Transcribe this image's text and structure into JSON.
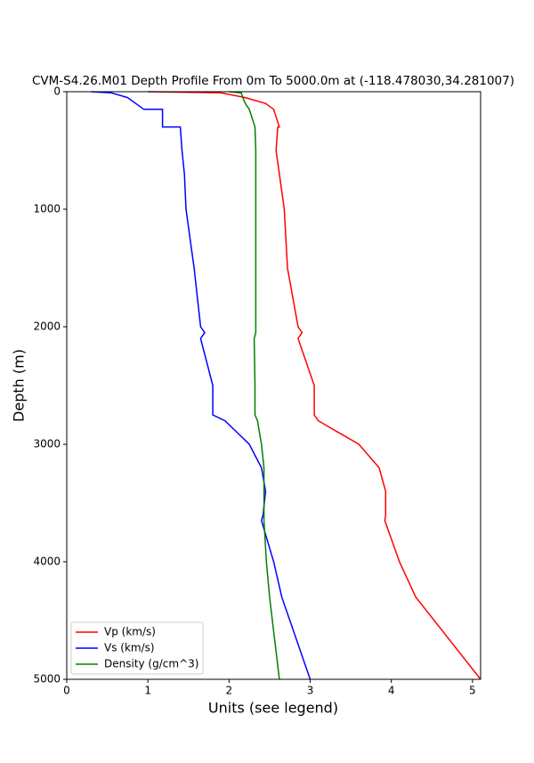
{
  "chart_data": {
    "type": "line",
    "title": "CVM-S4.26.M01 Depth Profile From 0m To 5000.0m at (-118.478030,34.281007)",
    "x_label": "Units (see legend)",
    "y_label": "Depth (m)",
    "y": [
      0,
      10,
      50,
      100,
      150,
      150,
      300,
      300,
      500,
      700,
      1000,
      1500,
      2000,
      2050,
      2100,
      2500,
      2750,
      2800,
      3000,
      3200,
      3400,
      3600,
      3650,
      4000,
      4300,
      5000
    ],
    "series": [
      {
        "name": "Vp (km/s)",
        "color": "#ff0000",
        "values": [
          1.0,
          1.9,
          2.2,
          2.45,
          2.55,
          2.55,
          2.62,
          2.6,
          2.58,
          2.62,
          2.68,
          2.72,
          2.85,
          2.9,
          2.85,
          3.05,
          3.05,
          3.1,
          3.6,
          3.85,
          3.93,
          3.93,
          3.92,
          4.1,
          4.3,
          5.1
        ]
      },
      {
        "name": "Vs (km/s)",
        "color": "#0000ff",
        "values": [
          0.3,
          0.55,
          0.75,
          0.85,
          0.95,
          1.18,
          1.18,
          1.4,
          1.42,
          1.45,
          1.47,
          1.57,
          1.65,
          1.7,
          1.65,
          1.8,
          1.8,
          1.95,
          2.25,
          2.4,
          2.45,
          2.42,
          2.4,
          2.55,
          2.65,
          3.0
        ]
      },
      {
        "name": "Density (g/cm^3)",
        "color": "#008000",
        "values": [
          2.0,
          2.15,
          2.17,
          2.2,
          2.25,
          2.25,
          2.32,
          2.32,
          2.33,
          2.33,
          2.33,
          2.33,
          2.33,
          2.33,
          2.31,
          2.32,
          2.32,
          2.35,
          2.4,
          2.43,
          2.43,
          2.43,
          2.43,
          2.46,
          2.5,
          2.62
        ]
      }
    ],
    "xlim": [
      0,
      5.1
    ],
    "xticks": [
      0,
      1,
      2,
      3,
      4,
      5
    ],
    "ylim": [
      5000,
      0
    ],
    "yticks": [
      0,
      1000,
      2000,
      3000,
      4000,
      5000
    ],
    "legend": "lower left"
  }
}
